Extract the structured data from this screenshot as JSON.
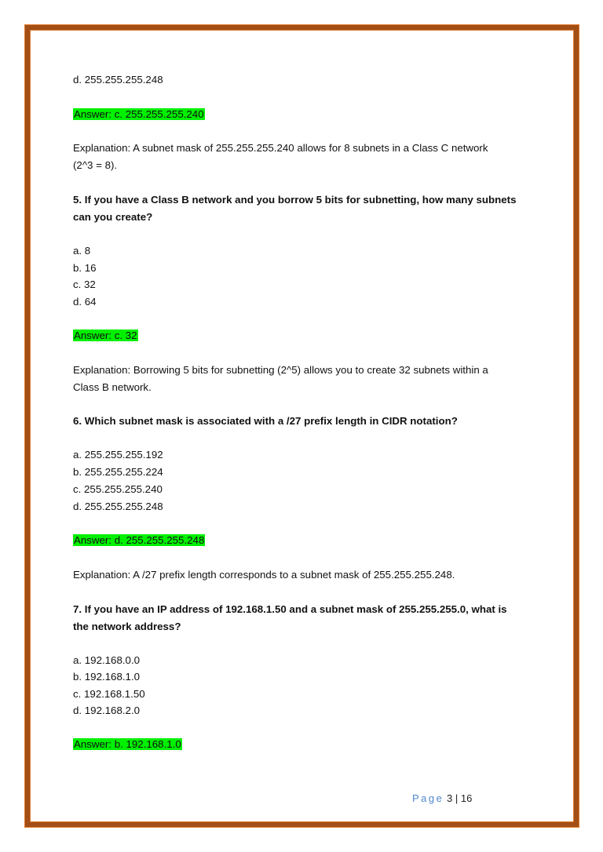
{
  "page": {
    "lines": [
      {
        "text": "d. 255.255.255.248",
        "style": "normal"
      },
      {
        "text": "Answer: c. 255.255.255.240",
        "style": "answer"
      },
      {
        "text": "Explanation: A subnet mask of 255.255.255.240 allows for 8 subnets in a Class C network",
        "style": "normal"
      },
      {
        "text": "(2^3 = 8).",
        "style": "normal"
      },
      {
        "text": "5. If you have a Class B network and you borrow 5 bits for subnetting, how many subnets",
        "style": "bold"
      },
      {
        "text": "can you create?",
        "style": "bold"
      },
      {
        "text": "a. 8",
        "style": "normal"
      },
      {
        "text": "b. 16",
        "style": "normal"
      },
      {
        "text": "c. 32",
        "style": "normal"
      },
      {
        "text": "d. 64",
        "style": "normal"
      },
      {
        "text": "Answer: c. 32",
        "style": "answer"
      },
      {
        "text": "Explanation: Borrowing 5 bits for subnetting (2^5) allows you to create 32 subnets within a",
        "style": "normal"
      },
      {
        "text": "Class B network.",
        "style": "normal"
      },
      {
        "text": "6. Which subnet mask is associated with a /27 prefix length in CIDR notation?",
        "style": "bold"
      },
      {
        "text": "a. 255.255.255.192",
        "style": "normal"
      },
      {
        "text": "b. 255.255.255.224",
        "style": "normal"
      },
      {
        "text": "c. 255.255.255.240",
        "style": "normal"
      },
      {
        "text": "d. 255.255.255.248",
        "style": "normal"
      },
      {
        "text": "Answer: d. 255.255.255.248",
        "style": "answer"
      },
      {
        "text": "Explanation: A /27 prefix length corresponds to a subnet mask of 255.255.255.248.",
        "style": "normal"
      },
      {
        "text": "7. If you have an IP address of 192.168.1.50 and a subnet mask of 255.255.255.0, what is",
        "style": "bold"
      },
      {
        "text": "the network address?",
        "style": "bold"
      },
      {
        "text": "a. 192.168.0.0",
        "style": "normal"
      },
      {
        "text": "b. 192.168.1.0",
        "style": "normal"
      },
      {
        "text": "c. 192.168.1.50",
        "style": "normal"
      },
      {
        "text": "d. 192.168.2.0",
        "style": "normal"
      },
      {
        "text": "Answer: b. 192.168.1.0",
        "style": "answer"
      }
    ]
  },
  "footer": {
    "page_label": "Page",
    "page_number": "3",
    "separator": "|",
    "total": "16"
  },
  "colors": {
    "border": "#a24f17",
    "highlight": "#00f000",
    "footer_label": "#4f88cc"
  }
}
